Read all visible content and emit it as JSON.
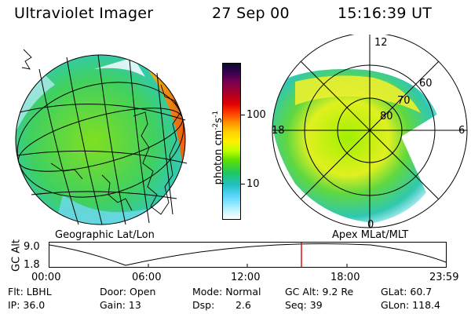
{
  "header": {
    "instrument": "Ultraviolet Imager",
    "date": "27 Sep 00",
    "time": "15:16:39 UT"
  },
  "colorbar": {
    "label_main": "photon cm",
    "label_sup1": "-2",
    "label_mid": "s",
    "label_sup2": "-1",
    "tick_100": "100",
    "tick_10": "10",
    "colors": [
      "#0a0a30",
      "#3a0050",
      "#7a0050",
      "#b00020",
      "#e00000",
      "#ff4000",
      "#ff9000",
      "#ffd000",
      "#fff000",
      "#c0ff00",
      "#60e000",
      "#20c860",
      "#20c0c0",
      "#60d8ff",
      "#b0f0ff",
      "#ffffff"
    ]
  },
  "geo_panel": {
    "caption": "Geographic Lat/Lon"
  },
  "polar_panel": {
    "caption": "Apex MLat/MLT",
    "mlt_labels": [
      "12",
      "18",
      "6",
      "0"
    ],
    "lat_labels": [
      "60",
      "70",
      "80"
    ]
  },
  "altitude_plot": {
    "ylabel": "GC Alt",
    "ytick_top": "9.0",
    "ytick_bottom": "1.8",
    "xticks": [
      "00:00",
      "06:00",
      "12:00",
      "18:00",
      "23:59"
    ],
    "current_time_marker": "15:16:39"
  },
  "info": {
    "flt": "Flt: LBHL",
    "ip": "IP: 36.0",
    "door": "Door: Open",
    "gain": "Gain: 13",
    "mode": "Mode: Normal",
    "dsp_label": "Dsp:",
    "dsp_value": "2.6",
    "gcalt": "GC Alt: 9.2 Re",
    "seq": "Seq: 39",
    "glat": "GLat:  60.7",
    "glon": "GLon: 118.4"
  }
}
